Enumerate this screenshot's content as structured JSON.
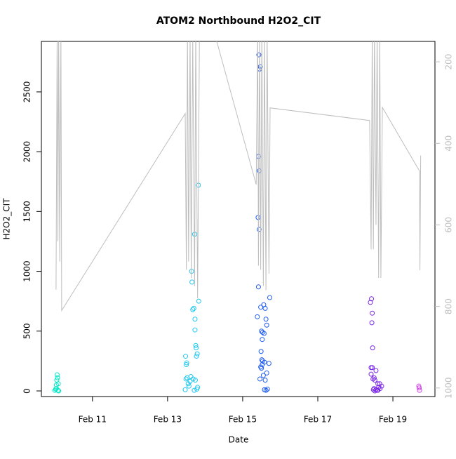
{
  "chart_data": {
    "type": "scatter",
    "title": "ATOM2 Northbound H2O2_CIT",
    "x_label": "Date",
    "y_label": "H2O2_CIT",
    "xlim": [
      9.64,
      20.12
    ],
    "xticks": [
      {
        "value": 11,
        "label": "Feb 11"
      },
      {
        "value": 13,
        "label": "Feb 13"
      },
      {
        "value": 15,
        "label": "Feb 15"
      },
      {
        "value": 17,
        "label": "Feb 17"
      },
      {
        "value": 19,
        "label": "Feb 19"
      }
    ],
    "ylim": [
      -47,
      2922
    ],
    "yticks": [
      0,
      500,
      1000,
      1500,
      2000,
      2500
    ],
    "y2lim": [
      1021,
      150
    ],
    "y2ticks": [
      200,
      400,
      600,
      800,
      1000
    ],
    "series": [
      {
        "type": "scatter",
        "x": [
          10.0,
          10.02,
          10.04,
          10.05,
          10.07,
          10.06,
          10.08,
          10.1,
          10.04,
          10.09,
          13.48,
          13.5,
          13.51,
          13.49,
          13.52,
          13.47,
          13.55,
          13.57,
          13.6,
          13.62,
          13.64,
          13.65,
          13.67,
          13.7,
          13.72,
          13.73,
          13.73,
          13.75,
          13.76,
          13.77,
          13.79,
          13.83,
          13.82,
          13.8,
          13.71,
          13.68,
          13.74,
          13.78,
          15.43,
          15.45,
          15.47,
          15.42,
          15.44,
          15.41,
          15.44,
          15.42,
          15.39,
          15.48,
          15.56,
          15.6,
          15.62,
          15.64,
          15.53,
          15.57,
          15.5,
          15.52,
          15.49,
          15.51,
          15.53,
          15.48,
          15.52,
          15.58,
          15.5,
          15.46,
          15.55,
          15.6,
          15.58,
          15.62,
          15.66,
          15.72,
          15.7,
          15.64,
          18.4,
          18.43,
          18.45,
          18.44,
          18.46,
          18.42,
          18.45,
          18.55,
          18.42,
          18.47,
          18.5,
          18.52,
          18.6,
          18.62,
          18.5,
          18.55,
          18.58,
          18.48,
          18.65,
          18.7,
          18.66,
          18.52,
          18.6,
          19.69,
          19.7,
          19.71
        ],
        "values": [
          5,
          15,
          50,
          90,
          110,
          135,
          5,
          0,
          20,
          60,
          290,
          220,
          235,
          100,
          110,
          10,
          60,
          40,
          80,
          120,
          1000,
          910,
          680,
          690,
          1310,
          600,
          510,
          380,
          360,
          290,
          310,
          750,
          1720,
          30,
          5,
          100,
          90,
          15,
          2810,
          2690,
          2710,
          1960,
          1840,
          1450,
          1350,
          870,
          620,
          700,
          720,
          690,
          600,
          550,
          490,
          480,
          500,
          430,
          330,
          260,
          250,
          200,
          220,
          240,
          190,
          100,
          130,
          90,
          10,
          5,
          15,
          780,
          230,
          150,
          740,
          770,
          650,
          570,
          360,
          195,
          195,
          170,
          140,
          100,
          110,
          90,
          60,
          30,
          20,
          10,
          5,
          10,
          60,
          40,
          20,
          0,
          5,
          40,
          25,
          5
        ],
        "colors": [
          "#00e8c8",
          "#00e8c8",
          "#00e8c8",
          "#00e8c8",
          "#00e8c8",
          "#00e8c8",
          "#00e8c8",
          "#00e8c8",
          "#00e8c8",
          "#00e8c8",
          "#1fc8f0",
          "#1fc8f0",
          "#1fc8f0",
          "#1fc8f0",
          "#1fc8f0",
          "#1fc8f0",
          "#1fc8f0",
          "#1fc8f0",
          "#1fc8f0",
          "#1fc8f0",
          "#1fc8f0",
          "#1fc8f0",
          "#1fc8f0",
          "#1fc8f0",
          "#1fc8f0",
          "#1fc8f0",
          "#1fc8f0",
          "#1fc8f0",
          "#1fc8f0",
          "#1fc8f0",
          "#1fc8f0",
          "#1fc8f0",
          "#1fc8f0",
          "#1fc8f0",
          "#1fc8f0",
          "#1fc8f0",
          "#1fc8f0",
          "#1fc8f0",
          "#1f5cf0",
          "#1f5cf0",
          "#1f5cf0",
          "#1f5cf0",
          "#1f5cf0",
          "#1f5cf0",
          "#1f5cf0",
          "#1f5cf0",
          "#1f5cf0",
          "#1f5cf0",
          "#1f5cf0",
          "#1f5cf0",
          "#1f5cf0",
          "#1f5cf0",
          "#1f5cf0",
          "#1f5cf0",
          "#1f5cf0",
          "#1f5cf0",
          "#1f5cf0",
          "#1f5cf0",
          "#1f5cf0",
          "#1f5cf0",
          "#1f5cf0",
          "#1f5cf0",
          "#1f5cf0",
          "#1f5cf0",
          "#1f5cf0",
          "#1f5cf0",
          "#1f5cf0",
          "#1f5cf0",
          "#1f5cf0",
          "#1f5cf0",
          "#1f5cf0",
          "#1f5cf0",
          "#7a28e8",
          "#7a28e8",
          "#7a28e8",
          "#7a28e8",
          "#7a28e8",
          "#7a28e8",
          "#7a28e8",
          "#7a28e8",
          "#7a28e8",
          "#7a28e8",
          "#7a28e8",
          "#7a28e8",
          "#7a28e8",
          "#7a28e8",
          "#7a28e8",
          "#7a28e8",
          "#7a28e8",
          "#7a28e8",
          "#7a28e8",
          "#7a28e8",
          "#7a28e8",
          "#7a28e8",
          "#7a28e8",
          "#d040e8",
          "#d040e8",
          "#d040e8"
        ]
      },
      {
        "type": "line",
        "axis": "y2",
        "color": "#bebebe",
        "x": [
          10.03,
          10.06,
          10.08,
          10.1,
          10.13,
          10.16,
          10.18,
          13.47,
          13.5,
          13.53,
          13.56,
          13.6,
          13.63,
          13.67,
          13.72,
          13.75,
          13.8,
          13.85,
          14.25,
          15.36,
          15.4,
          15.42,
          15.45,
          15.48,
          15.51,
          15.55,
          15.58,
          15.62,
          15.65,
          15.7,
          15.73,
          18.38,
          18.42,
          18.45,
          18.48,
          18.51,
          18.55,
          18.58,
          18.62,
          18.65,
          18.68,
          18.72,
          19.71,
          19.72,
          19.74
        ],
        "values": [
          759,
          120,
          640,
          120,
          690,
          120,
          810,
          327,
          710,
          120,
          690,
          130,
          730,
          140,
          750,
          120,
          780,
          120,
          130,
          501,
          120,
          700,
          130,
          710,
          120,
          750,
          130,
          760,
          120,
          720,
          313,
          344,
          660,
          130,
          660,
          120,
          600,
          130,
          730,
          120,
          730,
          312,
          468,
          711,
          430
        ]
      }
    ]
  }
}
